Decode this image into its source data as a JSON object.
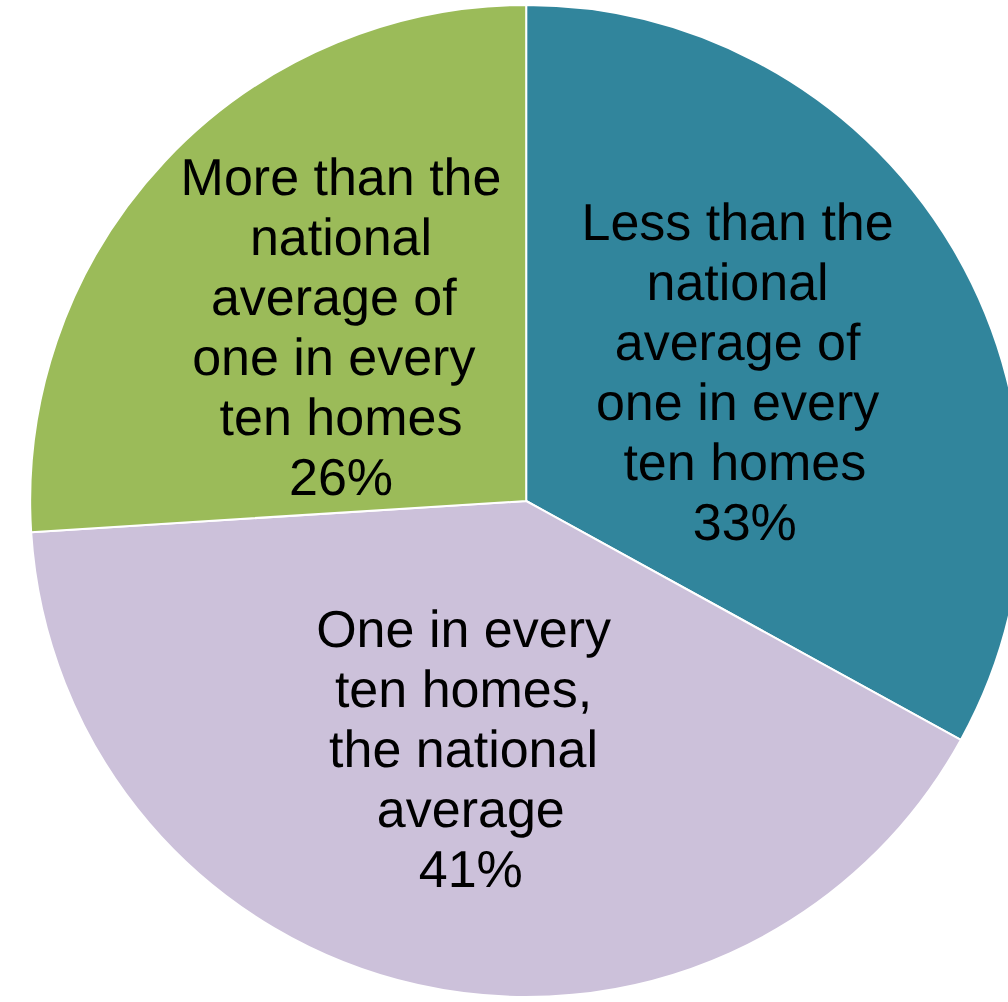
{
  "chart_data": {
    "type": "pie",
    "categories": [
      "Less than the national average of one in every ten homes",
      "One in every ten homes, the national average",
      "More than the national average of one in every ten homes"
    ],
    "values": [
      33,
      41,
      26
    ],
    "colors": [
      "#31859c",
      "#ccc1da",
      "#9bbb59"
    ],
    "value_labels": [
      "33%",
      "41%",
      "26%"
    ]
  }
}
